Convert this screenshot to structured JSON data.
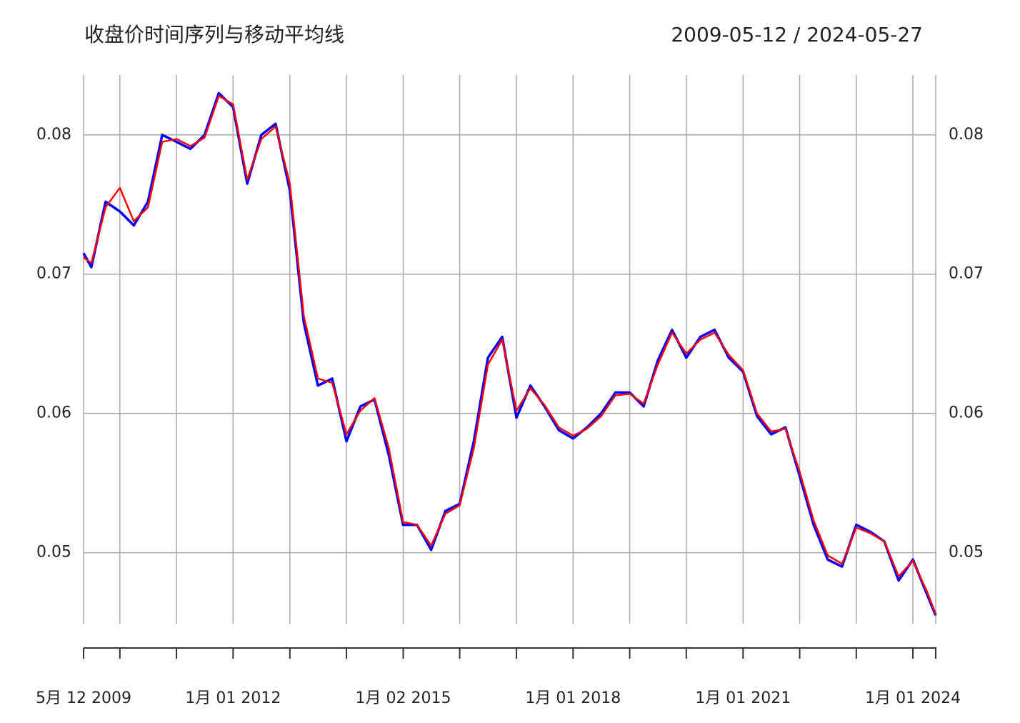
{
  "chart_data": {
    "type": "line",
    "title": "收盘价时间序列与移动平均线",
    "subtitle": "2009-05-12 / 2024-05-27",
    "x": [
      "2009-05-12",
      "2009-07-01",
      "2009-10-01",
      "2010-01-01",
      "2010-04-01",
      "2010-07-01",
      "2010-10-01",
      "2011-01-01",
      "2011-04-01",
      "2011-07-01",
      "2011-10-01",
      "2012-01-01",
      "2012-04-01",
      "2012-07-01",
      "2012-10-01",
      "2013-01-01",
      "2013-04-01",
      "2013-07-01",
      "2013-10-01",
      "2014-01-01",
      "2014-04-01",
      "2014-07-01",
      "2014-10-01",
      "2015-01-01",
      "2015-04-01",
      "2015-07-01",
      "2015-10-01",
      "2016-01-01",
      "2016-04-01",
      "2016-07-01",
      "2016-10-01",
      "2017-01-01",
      "2017-04-01",
      "2017-07-01",
      "2017-10-01",
      "2018-01-01",
      "2018-04-01",
      "2018-07-01",
      "2018-10-01",
      "2019-01-01",
      "2019-04-01",
      "2019-07-01",
      "2019-10-01",
      "2020-01-01",
      "2020-04-01",
      "2020-07-01",
      "2020-10-01",
      "2021-01-01",
      "2021-04-01",
      "2021-07-01",
      "2021-10-01",
      "2022-01-01",
      "2022-04-01",
      "2022-07-01",
      "2022-10-01",
      "2023-01-01",
      "2023-04-01",
      "2023-07-01",
      "2023-10-01",
      "2024-01-01",
      "2024-04-01",
      "2024-05-27"
    ],
    "series": [
      {
        "color": "#0000ff",
        "values": [
          0.0715,
          0.0705,
          0.0752,
          0.0745,
          0.0735,
          0.0752,
          0.08,
          0.0795,
          0.079,
          0.08,
          0.083,
          0.082,
          0.0765,
          0.08,
          0.0808,
          0.076,
          0.0665,
          0.062,
          0.0625,
          0.058,
          0.0605,
          0.061,
          0.057,
          0.052,
          0.052,
          0.0502,
          0.053,
          0.0535,
          0.058,
          0.064,
          0.0655,
          0.0597,
          0.062,
          0.0605,
          0.0588,
          0.0582,
          0.059,
          0.06,
          0.0615,
          0.0615,
          0.0605,
          0.0638,
          0.066,
          0.064,
          0.0655,
          0.066,
          0.064,
          0.063,
          0.0598,
          0.0585,
          0.059,
          0.0555,
          0.052,
          0.0495,
          0.049,
          0.052,
          0.0515,
          0.0508,
          0.048,
          0.0495,
          0.047,
          0.0455
        ]
      },
      {
        "color": "#ff0000",
        "values": [
          0.0712,
          0.0708,
          0.0748,
          0.0762,
          0.0738,
          0.0748,
          0.0795,
          0.0797,
          0.0792,
          0.0798,
          0.0828,
          0.0822,
          0.0768,
          0.0797,
          0.0806,
          0.0765,
          0.067,
          0.0625,
          0.0622,
          0.0585,
          0.0602,
          0.0611,
          0.0575,
          0.0522,
          0.052,
          0.0505,
          0.0528,
          0.0534,
          0.0575,
          0.0635,
          0.0653,
          0.0602,
          0.0618,
          0.0606,
          0.059,
          0.0584,
          0.0589,
          0.0598,
          0.0613,
          0.0614,
          0.0607,
          0.0635,
          0.0658,
          0.0643,
          0.0653,
          0.0658,
          0.0642,
          0.0631,
          0.06,
          0.0587,
          0.0589,
          0.0558,
          0.0523,
          0.0498,
          0.0492,
          0.0518,
          0.0514,
          0.0508,
          0.0483,
          0.0494,
          0.0472,
          0.0456
        ]
      }
    ],
    "xlim": [
      "2009-05-12",
      "2024-05-27"
    ],
    "xticks": [
      {
        "value": "2009-05-12",
        "label": "5月 12 2009"
      },
      "2010-01-01",
      "2011-01-01",
      {
        "value": "2012-01-01",
        "label": "1月 01 2012"
      },
      "2013-01-01",
      "2014-01-01",
      {
        "value": "2015-01-02",
        "label": "1月 02 2015"
      },
      "2016-01-01",
      "2017-01-01",
      {
        "value": "2018-01-01",
        "label": "1月 01 2018"
      },
      "2019-01-01",
      "2020-01-01",
      {
        "value": "2021-01-01",
        "label": "1月 01 2021"
      },
      "2022-01-01",
      "2023-01-01",
      {
        "value": "2024-01-01",
        "label": "1月 01 2024"
      },
      "2024-05-27"
    ],
    "ylim": [
      0.0449,
      0.0843
    ],
    "yticks": [
      0.05,
      0.06,
      0.07,
      0.08
    ],
    "grid": true
  }
}
